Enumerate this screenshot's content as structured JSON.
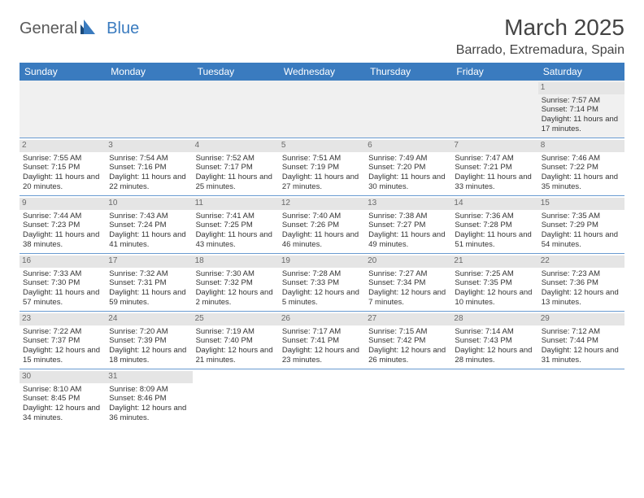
{
  "logo": {
    "text1": "General",
    "text2": "Blue"
  },
  "title": "March 2025",
  "location": "Barrado, Extremadura, Spain",
  "colors": {
    "header_bg": "#3a7bbf",
    "header_fg": "#ffffff",
    "daynum_bg": "#e5e5e5",
    "daynum_fg": "#6a6a6a",
    "border": "#6a9bd1",
    "empty_bg": "#f0f0f0"
  },
  "weekdays": [
    "Sunday",
    "Monday",
    "Tuesday",
    "Wednesday",
    "Thursday",
    "Friday",
    "Saturday"
  ],
  "weeks": [
    [
      null,
      null,
      null,
      null,
      null,
      null,
      {
        "d": "1",
        "sr": "7:57 AM",
        "ss": "7:14 PM",
        "dl": "11 hours and 17 minutes."
      }
    ],
    [
      {
        "d": "2",
        "sr": "7:55 AM",
        "ss": "7:15 PM",
        "dl": "11 hours and 20 minutes."
      },
      {
        "d": "3",
        "sr": "7:54 AM",
        "ss": "7:16 PM",
        "dl": "11 hours and 22 minutes."
      },
      {
        "d": "4",
        "sr": "7:52 AM",
        "ss": "7:17 PM",
        "dl": "11 hours and 25 minutes."
      },
      {
        "d": "5",
        "sr": "7:51 AM",
        "ss": "7:19 PM",
        "dl": "11 hours and 27 minutes."
      },
      {
        "d": "6",
        "sr": "7:49 AM",
        "ss": "7:20 PM",
        "dl": "11 hours and 30 minutes."
      },
      {
        "d": "7",
        "sr": "7:47 AM",
        "ss": "7:21 PM",
        "dl": "11 hours and 33 minutes."
      },
      {
        "d": "8",
        "sr": "7:46 AM",
        "ss": "7:22 PM",
        "dl": "11 hours and 35 minutes."
      }
    ],
    [
      {
        "d": "9",
        "sr": "7:44 AM",
        "ss": "7:23 PM",
        "dl": "11 hours and 38 minutes."
      },
      {
        "d": "10",
        "sr": "7:43 AM",
        "ss": "7:24 PM",
        "dl": "11 hours and 41 minutes."
      },
      {
        "d": "11",
        "sr": "7:41 AM",
        "ss": "7:25 PM",
        "dl": "11 hours and 43 minutes."
      },
      {
        "d": "12",
        "sr": "7:40 AM",
        "ss": "7:26 PM",
        "dl": "11 hours and 46 minutes."
      },
      {
        "d": "13",
        "sr": "7:38 AM",
        "ss": "7:27 PM",
        "dl": "11 hours and 49 minutes."
      },
      {
        "d": "14",
        "sr": "7:36 AM",
        "ss": "7:28 PM",
        "dl": "11 hours and 51 minutes."
      },
      {
        "d": "15",
        "sr": "7:35 AM",
        "ss": "7:29 PM",
        "dl": "11 hours and 54 minutes."
      }
    ],
    [
      {
        "d": "16",
        "sr": "7:33 AM",
        "ss": "7:30 PM",
        "dl": "11 hours and 57 minutes."
      },
      {
        "d": "17",
        "sr": "7:32 AM",
        "ss": "7:31 PM",
        "dl": "11 hours and 59 minutes."
      },
      {
        "d": "18",
        "sr": "7:30 AM",
        "ss": "7:32 PM",
        "dl": "12 hours and 2 minutes."
      },
      {
        "d": "19",
        "sr": "7:28 AM",
        "ss": "7:33 PM",
        "dl": "12 hours and 5 minutes."
      },
      {
        "d": "20",
        "sr": "7:27 AM",
        "ss": "7:34 PM",
        "dl": "12 hours and 7 minutes."
      },
      {
        "d": "21",
        "sr": "7:25 AM",
        "ss": "7:35 PM",
        "dl": "12 hours and 10 minutes."
      },
      {
        "d": "22",
        "sr": "7:23 AM",
        "ss": "7:36 PM",
        "dl": "12 hours and 13 minutes."
      }
    ],
    [
      {
        "d": "23",
        "sr": "7:22 AM",
        "ss": "7:37 PM",
        "dl": "12 hours and 15 minutes."
      },
      {
        "d": "24",
        "sr": "7:20 AM",
        "ss": "7:39 PM",
        "dl": "12 hours and 18 minutes."
      },
      {
        "d": "25",
        "sr": "7:19 AM",
        "ss": "7:40 PM",
        "dl": "12 hours and 21 minutes."
      },
      {
        "d": "26",
        "sr": "7:17 AM",
        "ss": "7:41 PM",
        "dl": "12 hours and 23 minutes."
      },
      {
        "d": "27",
        "sr": "7:15 AM",
        "ss": "7:42 PM",
        "dl": "12 hours and 26 minutes."
      },
      {
        "d": "28",
        "sr": "7:14 AM",
        "ss": "7:43 PM",
        "dl": "12 hours and 28 minutes."
      },
      {
        "d": "29",
        "sr": "7:12 AM",
        "ss": "7:44 PM",
        "dl": "12 hours and 31 minutes."
      }
    ],
    [
      {
        "d": "30",
        "sr": "8:10 AM",
        "ss": "8:45 PM",
        "dl": "12 hours and 34 minutes."
      },
      {
        "d": "31",
        "sr": "8:09 AM",
        "ss": "8:46 PM",
        "dl": "12 hours and 36 minutes."
      },
      null,
      null,
      null,
      null,
      null
    ]
  ],
  "labels": {
    "sunrise": "Sunrise: ",
    "sunset": "Sunset: ",
    "daylight": "Daylight: "
  }
}
